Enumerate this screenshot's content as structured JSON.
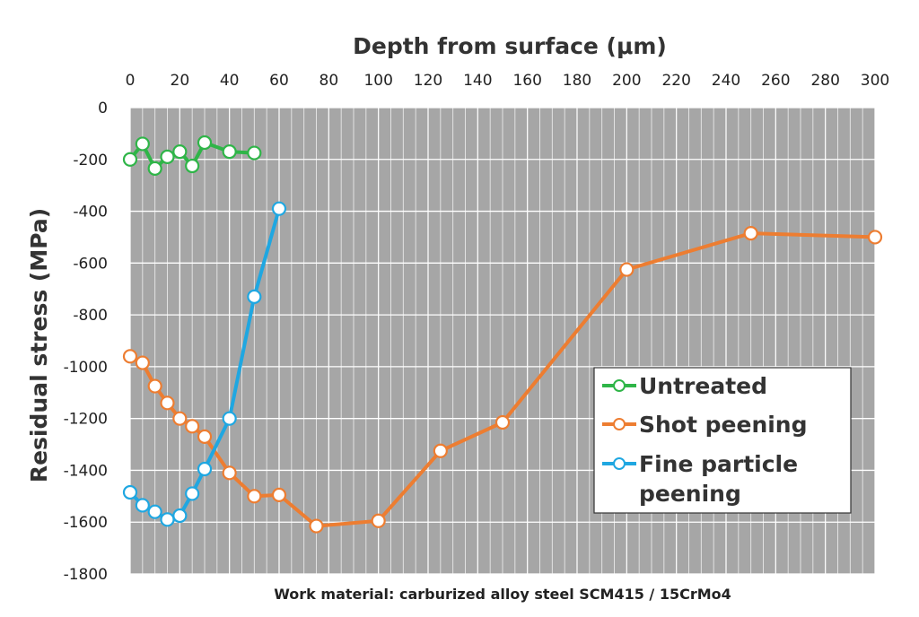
{
  "chart_data": {
    "type": "line",
    "xlabel": "Depth from surface (μm)",
    "ylabel": "Residual stress (MPa)",
    "footer": "Work material: carburized alloy steel SCM415 / 15CrMo4",
    "xlim": [
      0,
      300
    ],
    "ylim": [
      -1800,
      0
    ],
    "x_ticks": [
      0,
      20,
      40,
      60,
      80,
      100,
      120,
      140,
      160,
      180,
      200,
      220,
      240,
      260,
      280,
      300
    ],
    "y_ticks": [
      0,
      -200,
      -400,
      -600,
      -800,
      -1000,
      -1200,
      -1400,
      -1600,
      -1800
    ],
    "x_axis_position": "top",
    "grid": true,
    "legend_position": "right",
    "plot_background": "#a6a6a6",
    "grid_color": "#ffffff",
    "series": [
      {
        "name": "Untreated",
        "color": "#2fb548",
        "x": [
          0,
          5,
          10,
          15,
          20,
          25,
          30,
          40,
          50
        ],
        "y": [
          -200,
          -140,
          -235,
          -190,
          -170,
          -225,
          -135,
          -170,
          -175
        ]
      },
      {
        "name": "Shot peening",
        "color": "#ed7d31",
        "x": [
          0,
          5,
          10,
          15,
          20,
          25,
          30,
          40,
          50,
          60,
          75,
          100,
          125,
          150,
          200,
          250,
          300
        ],
        "y": [
          -960,
          -985,
          -1075,
          -1140,
          -1200,
          -1230,
          -1270,
          -1410,
          -1500,
          -1495,
          -1615,
          -1595,
          -1325,
          -1215,
          -625,
          -485,
          -500
        ]
      },
      {
        "name": "Fine particle peening",
        "legend_lines": [
          "Fine particle",
          "peening"
        ],
        "color": "#1fa7e1",
        "x": [
          0,
          5,
          10,
          15,
          20,
          25,
          30,
          40,
          50,
          60
        ],
        "y": [
          -1485,
          -1535,
          -1560,
          -1590,
          -1575,
          -1490,
          -1395,
          -1200,
          -730,
          -390
        ]
      }
    ]
  }
}
